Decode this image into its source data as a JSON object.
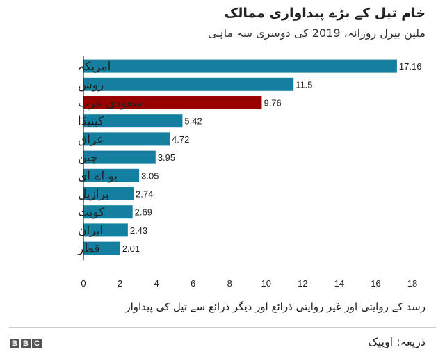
{
  "header": {
    "title": "خام تیل کے بڑے پیداواری ممالک",
    "subtitle": "ملین بیرل روزانہ، 2019 کی دوسری سہ ماہی"
  },
  "footer": {
    "xlabel": "رسد کے روایتی اور غیر روایتی ذرائع اور دیگر ذرائع سے تیل کی پیداوار",
    "logo": "BBC",
    "source": "ذریعہ: اوپیک"
  },
  "colors": {
    "bar": "#1380a1",
    "highlight": "#990000",
    "axis": "#222222"
  },
  "chart_data": {
    "type": "bar",
    "orientation": "horizontal",
    "categories": [
      "امریکہ",
      "روس",
      "سعودی عرب",
      "کینیڈا",
      "عراق",
      "چین",
      "یو اے ای",
      "برازیل",
      "کویت",
      "ایران",
      "قطر"
    ],
    "values": [
      17.16,
      11.5,
      9.76,
      5.42,
      4.72,
      3.95,
      3.05,
      2.74,
      2.69,
      2.43,
      2.01
    ],
    "value_labels": [
      "17.16",
      "11.5",
      "9.76",
      "5.42",
      "4.72",
      "3.95",
      "3.05",
      "2.74",
      "2.69",
      "2.43",
      "2.01"
    ],
    "highlight_category": "سعودی عرب",
    "xlim": [
      0,
      18
    ],
    "xticks": [
      0,
      2,
      4,
      6,
      8,
      10,
      12,
      14,
      16,
      18
    ],
    "grid": false
  }
}
